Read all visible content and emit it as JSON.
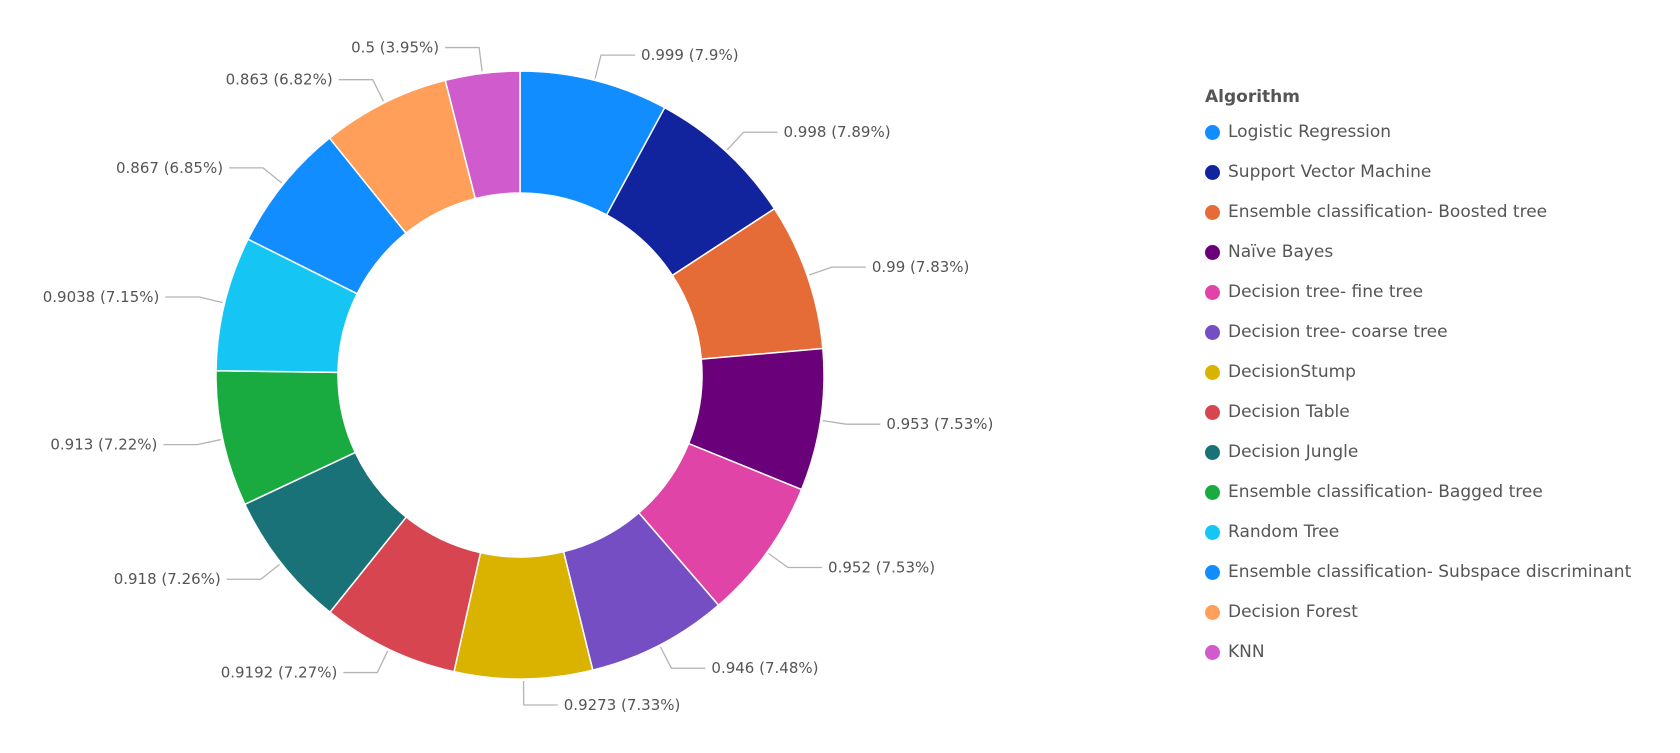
{
  "chart_data": {
    "type": "pie",
    "donut": true,
    "legend": {
      "title": "Algorithm",
      "placement": "right"
    },
    "slices": [
      {
        "name": "Logistic Regression",
        "value": 0.999,
        "percent_label": "0.999 (7.9%)",
        "color": "#118DFF"
      },
      {
        "name": "Support Vector Machine",
        "value": 0.998,
        "percent_label": "0.998 (7.89%)",
        "color": "#12239E"
      },
      {
        "name": "Ensemble classification- Boosted tree",
        "value": 0.99,
        "percent_label": "0.99 (7.83%)",
        "color": "#E66C37"
      },
      {
        "name": "Naïve Bayes",
        "value": 0.953,
        "percent_label": "0.953 (7.53%)",
        "color": "#6B007B"
      },
      {
        "name": "Decision tree- fine tree",
        "value": 0.952,
        "percent_label": "0.952 (7.53%)",
        "color": "#E044A7"
      },
      {
        "name": "Decision tree- coarse tree",
        "value": 0.946,
        "percent_label": "0.946 (7.48%)",
        "color": "#744EC2"
      },
      {
        "name": "DecisionStump",
        "value": 0.9273,
        "percent_label": "0.9273 (7.33%)",
        "color": "#D9B300"
      },
      {
        "name": "Decision Table",
        "value": 0.9192,
        "percent_label": "0.9192 (7.27%)",
        "color": "#D64550"
      },
      {
        "name": "Decision Jungle",
        "value": 0.918,
        "percent_label": "0.918 (7.26%)",
        "color": "#197278"
      },
      {
        "name": "Ensemble classification- Bagged tree",
        "value": 0.913,
        "percent_label": "0.913 (7.22%)",
        "color": "#1AAB40"
      },
      {
        "name": "Random Tree",
        "value": 0.9038,
        "percent_label": "0.9038 (7.15%)",
        "color": "#15C6F4"
      },
      {
        "name": "Ensemble classification- Subspace discriminant",
        "value": 0.867,
        "percent_label": "0.867 (6.85%)",
        "color": "#118DFF"
      },
      {
        "name": "Decision Forest",
        "value": 0.863,
        "percent_label": "0.863 (6.82%)",
        "color": "#FF9F5A"
      },
      {
        "name": "KNN",
        "value": 0.5,
        "percent_label": "0.5 (3.95%)",
        "color": "#D05BCC"
      }
    ]
  }
}
